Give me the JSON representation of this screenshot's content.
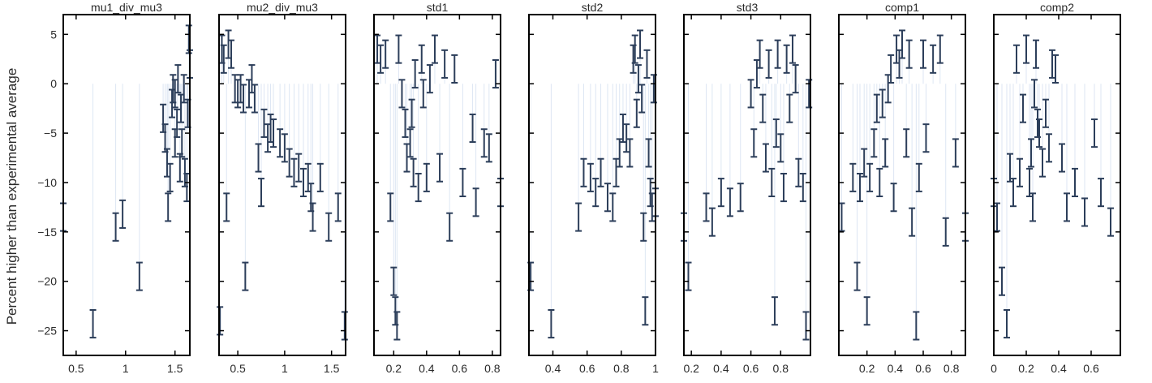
{
  "colors": {
    "marker": "#2c3e5a",
    "stem": "#dde6f3",
    "frame": "#000000",
    "text": "#2a2a2a"
  },
  "figure": {
    "ylabel": "Percent higher than experimental average"
  },
  "chart_data": [
    {
      "type": "scatter",
      "title": "mu1_div_mu3",
      "xlim": [
        0.37,
        1.65
      ],
      "ylim": [
        -27.5,
        7
      ],
      "xticks": [
        0.5,
        1,
        1.5
      ],
      "xtick_labels": [
        "0.5",
        "1",
        "1.5"
      ],
      "yticks": [
        5,
        0,
        -5,
        -10,
        -15,
        -20,
        -25
      ],
      "ytick_labels": [
        "5",
        "0",
        "−5",
        "−10",
        "−15",
        "−20",
        "−25"
      ],
      "error_half": 1.4,
      "points": [
        [
          0.37,
          -13.5
        ],
        [
          0.67,
          -24.3
        ],
        [
          0.9,
          -14.5
        ],
        [
          0.97,
          -13.2
        ],
        [
          1.14,
          -19.5
        ],
        [
          1.38,
          -3.5
        ],
        [
          1.4,
          -5.5
        ],
        [
          1.42,
          -8
        ],
        [
          1.43,
          -12.5
        ],
        [
          1.45,
          -9.5
        ],
        [
          1.47,
          -2
        ],
        [
          1.48,
          -0.5
        ],
        [
          1.5,
          -1
        ],
        [
          1.5,
          -6
        ],
        [
          1.52,
          -4
        ],
        [
          1.53,
          0.5
        ],
        [
          1.55,
          -8.5
        ],
        [
          1.56,
          -2.5
        ],
        [
          1.57,
          -6
        ],
        [
          1.59,
          -0.5
        ],
        [
          1.6,
          -9
        ],
        [
          1.62,
          -10.5
        ],
        [
          1.63,
          -3
        ],
        [
          1.64,
          4.5
        ],
        [
          1.65,
          2
        ]
      ]
    },
    {
      "type": "scatter",
      "title": "mu2_div_mu3",
      "xlim": [
        0.3,
        1.65
      ],
      "ylim": [
        -27.5,
        7
      ],
      "xticks": [
        0.5,
        1,
        1.5
      ],
      "xtick_labels": [
        "0.5",
        "1",
        "1.5"
      ],
      "yticks": [
        5,
        0,
        -5,
        -10,
        -15,
        -20,
        -25
      ],
      "ytick_labels": [
        "5",
        "0",
        "−5",
        "−10",
        "−15",
        "−20",
        "−25"
      ],
      "error_half": 1.4,
      "points": [
        [
          0.31,
          -24
        ],
        [
          0.33,
          3.5
        ],
        [
          0.35,
          2.5
        ],
        [
          0.38,
          -12.5
        ],
        [
          0.4,
          4
        ],
        [
          0.43,
          3
        ],
        [
          0.47,
          -0.5
        ],
        [
          0.5,
          -1
        ],
        [
          0.53,
          -0.5
        ],
        [
          0.56,
          -1.5
        ],
        [
          0.58,
          -19.5
        ],
        [
          0.62,
          -1
        ],
        [
          0.65,
          0.5
        ],
        [
          0.68,
          -1.5
        ],
        [
          0.72,
          -7.5
        ],
        [
          0.75,
          -11
        ],
        [
          0.78,
          -4
        ],
        [
          0.82,
          -5.5
        ],
        [
          0.85,
          -4.5
        ],
        [
          0.88,
          -5
        ],
        [
          0.95,
          -6
        ],
        [
          1.0,
          -6.5
        ],
        [
          1.05,
          -8
        ],
        [
          1.1,
          -9
        ],
        [
          1.15,
          -8.5
        ],
        [
          1.2,
          -10
        ],
        [
          1.25,
          -9.5
        ],
        [
          1.28,
          -11.5
        ],
        [
          1.3,
          -13.5
        ],
        [
          1.38,
          -9.5
        ],
        [
          1.47,
          -14.5
        ],
        [
          1.57,
          -12.5
        ],
        [
          1.64,
          -24.5
        ]
      ]
    },
    {
      "type": "scatter",
      "title": "std1",
      "xlim": [
        0.08,
        0.85
      ],
      "ylim": [
        -27.5,
        7
      ],
      "xticks": [
        0.2,
        0.4,
        0.6,
        0.8
      ],
      "xtick_labels": [
        "0.2",
        "0.4",
        "0.6",
        "0.8"
      ],
      "yticks": [
        5,
        0,
        -5,
        -10,
        -15,
        -20,
        -25
      ],
      "ytick_labels": [
        "5",
        "0",
        "−5",
        "−10",
        "−15",
        "−20",
        "−25"
      ],
      "error_half": 1.4,
      "points": [
        [
          0.1,
          3.5
        ],
        [
          0.12,
          2.5
        ],
        [
          0.15,
          3
        ],
        [
          0.18,
          -12.5
        ],
        [
          0.2,
          -20
        ],
        [
          0.21,
          -23
        ],
        [
          0.22,
          -24.5
        ],
        [
          0.23,
          3.5
        ],
        [
          0.25,
          -1
        ],
        [
          0.27,
          -4
        ],
        [
          0.28,
          -7.5
        ],
        [
          0.3,
          -6
        ],
        [
          0.31,
          -3
        ],
        [
          0.32,
          -9
        ],
        [
          0.33,
          1
        ],
        [
          0.35,
          -10.5
        ],
        [
          0.37,
          2.5
        ],
        [
          0.38,
          -1
        ],
        [
          0.4,
          -9.5
        ],
        [
          0.42,
          0.5
        ],
        [
          0.45,
          3.5
        ],
        [
          0.48,
          -8.5
        ],
        [
          0.51,
          2
        ],
        [
          0.54,
          -14.5
        ],
        [
          0.57,
          1.5
        ],
        [
          0.62,
          -10
        ],
        [
          0.68,
          -4.5
        ],
        [
          0.7,
          -12
        ],
        [
          0.75,
          -6
        ],
        [
          0.78,
          -6.5
        ],
        [
          0.82,
          1
        ],
        [
          0.85,
          -11
        ]
      ]
    },
    {
      "type": "scatter",
      "title": "std2",
      "xlim": [
        0.26,
        1.0
      ],
      "ylim": [
        -27.5,
        7
      ],
      "xticks": [
        0.4,
        0.6,
        0.8,
        1
      ],
      "xtick_labels": [
        "0.4",
        "0.6",
        "0.8",
        "1"
      ],
      "yticks": [
        5,
        0,
        -5,
        -10,
        -15,
        -20,
        -25
      ],
      "ytick_labels": [
        "5",
        "0",
        "−5",
        "−10",
        "−15",
        "−20",
        "−25"
      ],
      "error_half": 1.4,
      "points": [
        [
          0.27,
          -19.5
        ],
        [
          0.39,
          -24.3
        ],
        [
          0.55,
          -13.5
        ],
        [
          0.58,
          -9
        ],
        [
          0.62,
          -9.5
        ],
        [
          0.65,
          -11
        ],
        [
          0.68,
          -9
        ],
        [
          0.72,
          -11.5
        ],
        [
          0.75,
          -12.5
        ],
        [
          0.77,
          -9
        ],
        [
          0.79,
          -7
        ],
        [
          0.81,
          -4.5
        ],
        [
          0.83,
          -5.5
        ],
        [
          0.85,
          -7
        ],
        [
          0.87,
          2.5
        ],
        [
          0.88,
          3.5
        ],
        [
          0.89,
          -3
        ],
        [
          0.9,
          0.5
        ],
        [
          0.91,
          4
        ],
        [
          0.92,
          -1.5
        ],
        [
          0.93,
          -14.5
        ],
        [
          0.94,
          -23
        ],
        [
          0.95,
          2
        ],
        [
          0.96,
          -7
        ],
        [
          0.97,
          -11
        ],
        [
          0.98,
          -12.5
        ],
        [
          0.99,
          -0.5
        ],
        [
          1.0,
          -12
        ]
      ]
    },
    {
      "type": "scatter",
      "title": "std3",
      "xlim": [
        0.15,
        1.0
      ],
      "ylim": [
        -27.5,
        7
      ],
      "xticks": [
        0.2,
        0.4,
        0.6,
        0.8
      ],
      "xtick_labels": [
        "0.2",
        "0.4",
        "0.6",
        "0.8"
      ],
      "yticks": [
        5,
        0,
        -5,
        -10,
        -15,
        -20,
        -25
      ],
      "ytick_labels": [
        "5",
        "0",
        "−5",
        "−10",
        "−15",
        "−20",
        "−25"
      ],
      "error_half": 1.4,
      "points": [
        [
          0.15,
          -14.5
        ],
        [
          0.18,
          -19.5
        ],
        [
          0.3,
          -12.5
        ],
        [
          0.34,
          -14
        ],
        [
          0.4,
          -11
        ],
        [
          0.46,
          -12
        ],
        [
          0.53,
          -11.5
        ],
        [
          0.6,
          -1
        ],
        [
          0.62,
          -6
        ],
        [
          0.64,
          1
        ],
        [
          0.66,
          3
        ],
        [
          0.68,
          -2.5
        ],
        [
          0.7,
          -7.5
        ],
        [
          0.72,
          2
        ],
        [
          0.74,
          -10
        ],
        [
          0.76,
          -23
        ],
        [
          0.77,
          -5
        ],
        [
          0.78,
          3
        ],
        [
          0.8,
          -6.5
        ],
        [
          0.82,
          -10.5
        ],
        [
          0.84,
          2.5
        ],
        [
          0.86,
          -2.5
        ],
        [
          0.88,
          3.5
        ],
        [
          0.9,
          0.5
        ],
        [
          0.92,
          -9
        ],
        [
          0.95,
          -10.5
        ],
        [
          0.97,
          -24.5
        ],
        [
          0.99,
          -1
        ]
      ]
    },
    {
      "type": "scatter",
      "title": "comp1",
      "xlim": [
        0.0,
        0.9
      ],
      "ylim": [
        -27.5,
        7
      ],
      "xticks": [
        0.2,
        0.4,
        0.6,
        0.8
      ],
      "xtick_labels": [
        "0.2",
        "0.4",
        "0.6",
        "0.8"
      ],
      "yticks": [
        5,
        0,
        -5,
        -10,
        -15,
        -20,
        -25
      ],
      "ytick_labels": [
        "5",
        "0",
        "−5",
        "−10",
        "−15",
        "−20",
        "−25"
      ],
      "error_half": 1.4,
      "points": [
        [
          0.02,
          -13.5
        ],
        [
          0.1,
          -9.5
        ],
        [
          0.13,
          -19.5
        ],
        [
          0.15,
          -10.5
        ],
        [
          0.18,
          -8
        ],
        [
          0.2,
          -23
        ],
        [
          0.22,
          -9.5
        ],
        [
          0.25,
          -6
        ],
        [
          0.27,
          -2.5
        ],
        [
          0.29,
          -10
        ],
        [
          0.31,
          -2
        ],
        [
          0.33,
          -7
        ],
        [
          0.35,
          -0.5
        ],
        [
          0.37,
          1.5
        ],
        [
          0.39,
          -11.5
        ],
        [
          0.41,
          3.5
        ],
        [
          0.43,
          2
        ],
        [
          0.45,
          4
        ],
        [
          0.48,
          -6
        ],
        [
          0.5,
          3
        ],
        [
          0.52,
          -14
        ],
        [
          0.55,
          -24.5
        ],
        [
          0.57,
          -9.5
        ],
        [
          0.6,
          3
        ],
        [
          0.62,
          -5.5
        ],
        [
          0.67,
          2.5
        ],
        [
          0.72,
          3.5
        ],
        [
          0.76,
          -15
        ],
        [
          0.83,
          -7
        ],
        [
          0.9,
          -14.5
        ]
      ]
    },
    {
      "type": "scatter",
      "title": "comp2",
      "xlim": [
        0.0,
        0.78
      ],
      "ylim": [
        -27.5,
        7
      ],
      "xticks": [
        0,
        0.2,
        0.4,
        0.6
      ],
      "xtick_labels": [
        "0",
        "0.2",
        "0.4",
        "0.6"
      ],
      "yticks": [
        5,
        0,
        -5,
        -10,
        -15,
        -20,
        -25
      ],
      "ytick_labels": [
        "5",
        "0",
        "−5",
        "−10",
        "−15",
        "−20",
        "−25"
      ],
      "error_half": 1.4,
      "points": [
        [
          0.0,
          -11
        ],
        [
          0.02,
          -13.5
        ],
        [
          0.05,
          -20
        ],
        [
          0.08,
          -24.3
        ],
        [
          0.1,
          -8.5
        ],
        [
          0.12,
          -11
        ],
        [
          0.14,
          2.5
        ],
        [
          0.16,
          -9
        ],
        [
          0.18,
          -2.5
        ],
        [
          0.2,
          3.5
        ],
        [
          0.22,
          -10
        ],
        [
          0.23,
          -7
        ],
        [
          0.24,
          -12.5
        ],
        [
          0.25,
          -1
        ],
        [
          0.26,
          3
        ],
        [
          0.27,
          -4
        ],
        [
          0.28,
          -5
        ],
        [
          0.3,
          -8
        ],
        [
          0.32,
          -3
        ],
        [
          0.34,
          -6.5
        ],
        [
          0.36,
          2
        ],
        [
          0.38,
          1.5
        ],
        [
          0.42,
          -7.5
        ],
        [
          0.45,
          -12.5
        ],
        [
          0.5,
          -10
        ],
        [
          0.56,
          -13
        ],
        [
          0.62,
          -5
        ],
        [
          0.66,
          -11
        ],
        [
          0.72,
          -14
        ]
      ]
    }
  ]
}
